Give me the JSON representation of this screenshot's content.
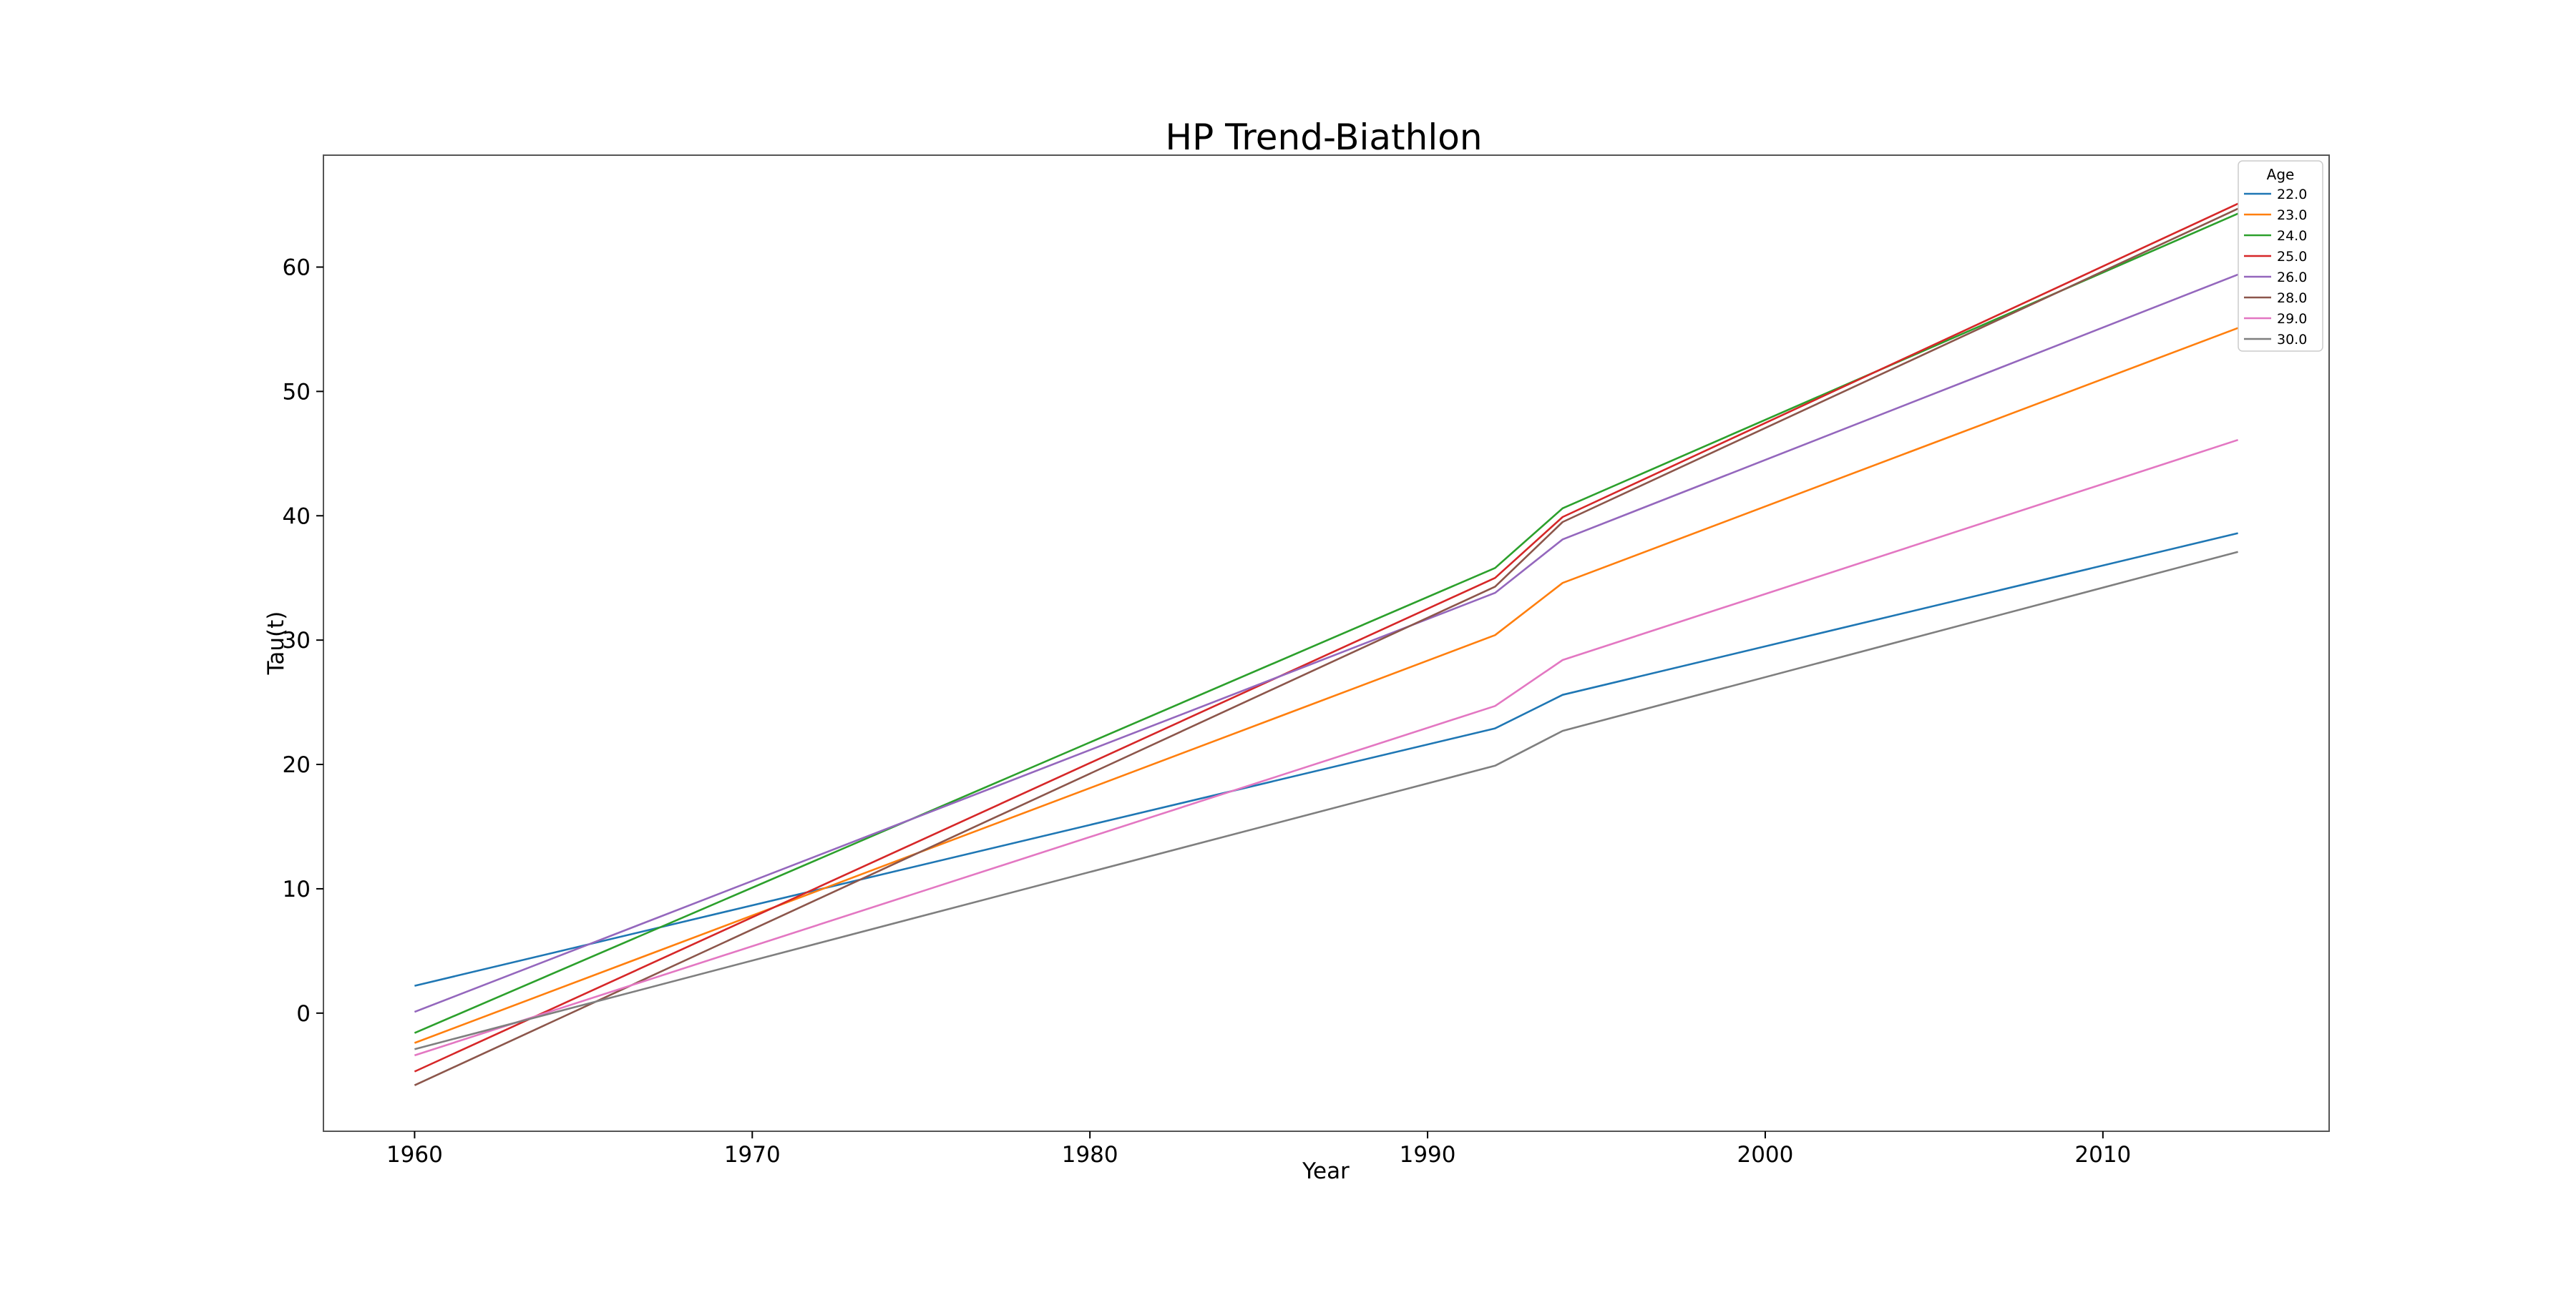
{
  "chart_data": {
    "type": "line",
    "title": "HP Trend-Biathlon",
    "xlabel": "Year",
    "ylabel": "Tau(t)",
    "xlim": [
      1957.3,
      2016.7
    ],
    "ylim": [
      -9.5,
      69.0
    ],
    "x_ticks": [
      1960,
      1970,
      1980,
      1990,
      2000,
      2010
    ],
    "y_ticks": [
      0,
      10,
      20,
      30,
      40,
      50,
      60
    ],
    "grid": false,
    "legend": {
      "title": "Age",
      "position": "top-right"
    },
    "x": [
      1960,
      1992,
      1994,
      2014
    ],
    "series": [
      {
        "name": "22.0",
        "color": "#1f77b4",
        "values": [
          2.2,
          22.9,
          25.6,
          38.6
        ]
      },
      {
        "name": "23.0",
        "color": "#ff7f0e",
        "values": [
          -2.4,
          30.4,
          34.6,
          55.1
        ]
      },
      {
        "name": "24.0",
        "color": "#2ca02c",
        "values": [
          -1.6,
          35.8,
          40.6,
          64.3
        ]
      },
      {
        "name": "25.0",
        "color": "#d62728",
        "values": [
          -4.7,
          35.0,
          39.9,
          65.1
        ]
      },
      {
        "name": "26.0",
        "color": "#9467bd",
        "values": [
          0.1,
          33.8,
          38.1,
          59.4
        ]
      },
      {
        "name": "28.0",
        "color": "#8c564b",
        "values": [
          -5.8,
          34.3,
          39.5,
          64.7
        ]
      },
      {
        "name": "29.0",
        "color": "#e377c2",
        "values": [
          -3.4,
          24.7,
          28.4,
          46.1
        ]
      },
      {
        "name": "30.0",
        "color": "#7f7f7f",
        "values": [
          -2.9,
          19.9,
          22.7,
          37.1
        ]
      }
    ]
  }
}
